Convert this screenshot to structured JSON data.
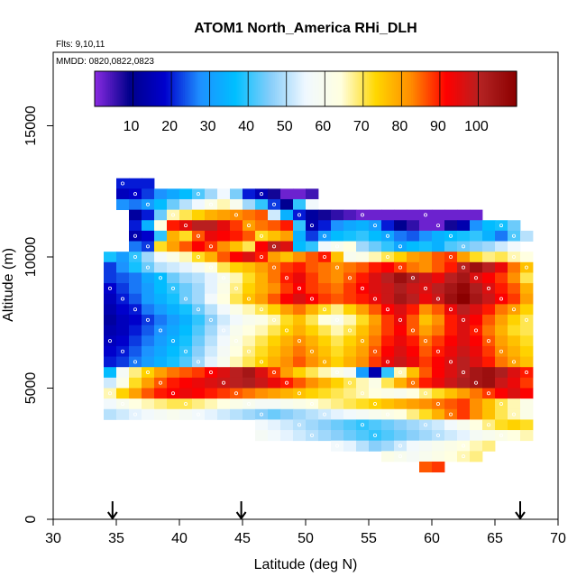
{
  "chart_data": {
    "type": "heatmap",
    "title": "ATOM1 North_America RHi_DLH",
    "annotations": [
      "Flts: 9,10,11",
      "MMDD: 0820,0822,0823"
    ],
    "xlabel": "Latitude (deg N)",
    "ylabel": "Altitude (m)",
    "xlim": [
      30,
      70
    ],
    "ylim": [
      0,
      17800
    ],
    "x_ticks": [
      30,
      35,
      40,
      45,
      50,
      55,
      60,
      65,
      70
    ],
    "y_ticks": [
      0,
      5000,
      10000,
      15000
    ],
    "grid": false,
    "colorbar": {
      "placement": "top-inside",
      "range": [
        0,
        110
      ],
      "ticks": [
        10,
        20,
        30,
        40,
        50,
        60,
        70,
        80,
        90,
        100
      ],
      "colors": [
        "#8a2be2",
        "#00008b",
        "#0000cd",
        "#1e90ff",
        "#00bfff",
        "#87cefa",
        "#f0f8ff",
        "#ffffe0",
        "#ffd700",
        "#ff8c00",
        "#ff0000",
        "#b22222",
        "#8b0000"
      ]
    },
    "cell_size": {
      "dlat": 1,
      "dalt": 400
    },
    "arrows_lat": [
      34.7,
      44.9,
      67.0
    ],
    "rows": [
      {
        "alt": 12600,
        "lat0": 35,
        "vals": [
          20,
          20,
          20
        ]
      },
      {
        "alt": 12200,
        "lat0": 35,
        "vals": [
          16,
          18,
          22,
          28,
          32,
          36,
          42,
          48,
          55,
          45,
          20,
          15,
          8,
          2,
          2,
          5
        ]
      },
      {
        "alt": 11800,
        "lat0": 35,
        "vals": [
          28,
          26,
          30,
          36,
          44,
          50,
          55,
          62,
          66,
          60,
          48,
          40,
          22,
          10,
          40,
          56
        ]
      },
      {
        "alt": 11400,
        "lat0": 36,
        "vals": [
          12,
          20,
          44,
          66,
          70,
          74,
          78,
          80,
          82,
          84,
          86,
          52,
          34,
          20,
          12,
          8,
          6,
          4,
          2,
          2,
          2,
          2,
          2,
          2,
          2,
          2,
          2,
          2
        ]
      },
      {
        "alt": 11000,
        "lat0": 36,
        "vals": [
          20,
          34,
          64,
          90,
          95,
          100,
          100,
          95,
          88,
          80,
          84,
          86,
          90,
          40,
          14,
          20,
          28,
          32,
          34,
          30,
          20,
          10,
          6,
          2,
          2,
          8,
          14,
          28,
          36,
          38,
          44
        ]
      },
      {
        "alt": 10600,
        "lat0": 36,
        "vals": [
          14,
          18,
          40,
          78,
          72,
          86,
          94,
          92,
          90,
          86,
          72,
          76,
          80,
          34,
          22,
          30,
          36,
          38,
          40,
          36,
          32,
          26,
          24,
          28,
          34,
          36,
          38,
          40,
          34,
          26,
          42,
          50
        ]
      },
      {
        "alt": 10200,
        "lat0": 36,
        "vals": [
          26,
          22,
          72,
          80,
          86,
          92,
          88,
          82,
          76,
          70,
          92,
          100,
          96,
          36,
          40,
          56,
          60,
          64,
          48,
          44,
          40,
          32,
          36,
          38,
          34,
          42,
          44,
          46,
          48,
          52,
          56
        ]
      },
      {
        "alt": 9800,
        "lat0": 34,
        "vals": [
          38,
          30,
          40,
          48,
          56,
          62,
          66,
          72,
          78,
          86,
          92,
          96,
          90,
          80,
          76,
          82,
          86,
          90,
          76,
          60,
          62,
          66,
          70,
          74,
          80,
          82,
          86,
          88,
          80,
          72,
          68,
          70,
          66,
          64
        ]
      },
      {
        "alt": 9400,
        "lat0": 34,
        "vals": [
          22,
          28,
          38,
          44,
          50,
          52,
          54,
          58,
          64,
          70,
          74,
          76,
          80,
          84,
          88,
          90,
          86,
          84,
          82,
          84,
          86,
          90,
          92,
          88,
          84,
          82,
          86,
          90,
          100,
          106,
          100,
          94,
          84,
          76
        ]
      },
      {
        "alt": 9000,
        "lat0": 34,
        "vals": [
          22,
          24,
          26,
          32,
          36,
          44,
          48,
          50,
          54,
          60,
          66,
          72,
          78,
          84,
          90,
          94,
          88,
          84,
          82,
          86,
          90,
          96,
          100,
          106,
          102,
          98,
          94,
          100,
          104,
          96,
          92,
          88,
          82,
          70
        ]
      },
      {
        "alt": 8600,
        "lat0": 34,
        "vals": [
          18,
          22,
          26,
          30,
          36,
          40,
          44,
          48,
          54,
          62,
          68,
          74,
          78,
          82,
          88,
          92,
          88,
          86,
          84,
          88,
          92,
          96,
          98,
          102,
          98,
          96,
          100,
          104,
          108,
          102,
          96,
          90,
          86,
          78
        ]
      },
      {
        "alt": 8200,
        "lat0": 34,
        "vals": [
          16,
          20,
          24,
          30,
          34,
          38,
          44,
          48,
          56,
          64,
          70,
          76,
          80,
          86,
          92,
          96,
          92,
          88,
          86,
          88,
          90,
          94,
          98,
          104,
          100,
          94,
          98,
          106,
          110,
          104,
          98,
          92,
          88,
          80
        ]
      },
      {
        "alt": 7800,
        "lat0": 34,
        "vals": [
          14,
          18,
          20,
          26,
          30,
          34,
          38,
          44,
          50,
          56,
          62,
          66,
          70,
          74,
          80,
          84,
          78,
          72,
          68,
          74,
          80,
          86,
          92,
          96,
          90,
          82,
          86,
          94,
          100,
          96,
          90,
          84,
          80,
          74
        ]
      },
      {
        "alt": 7400,
        "lat0": 34,
        "vals": [
          12,
          16,
          18,
          22,
          26,
          30,
          34,
          40,
          46,
          52,
          56,
          60,
          62,
          66,
          72,
          76,
          70,
          64,
          60,
          66,
          72,
          80,
          88,
          94,
          86,
          76,
          82,
          90,
          96,
          92,
          86,
          80,
          74,
          70
        ]
      },
      {
        "alt": 7000,
        "lat0": 34,
        "vals": [
          14,
          16,
          20,
          24,
          28,
          32,
          36,
          42,
          48,
          54,
          60,
          64,
          66,
          70,
          74,
          78,
          74,
          70,
          66,
          70,
          76,
          82,
          88,
          92,
          86,
          80,
          84,
          90,
          96,
          90,
          84,
          78,
          72,
          70
        ]
      },
      {
        "alt": 6600,
        "lat0": 34,
        "vals": [
          16,
          18,
          22,
          26,
          30,
          34,
          38,
          44,
          50,
          56,
          62,
          66,
          70,
          74,
          78,
          82,
          78,
          74,
          70,
          74,
          78,
          84,
          90,
          94,
          90,
          84,
          88,
          92,
          96,
          92,
          86,
          80,
          76,
          72
        ]
      },
      {
        "alt": 6200,
        "lat0": 34,
        "vals": [
          18,
          20,
          24,
          28,
          32,
          36,
          40,
          46,
          52,
          58,
          64,
          68,
          72,
          76,
          80,
          84,
          80,
          76,
          72,
          76,
          80,
          86,
          92,
          96,
          92,
          86,
          90,
          94,
          98,
          94,
          88,
          82,
          78,
          74
        ]
      },
      {
        "alt": 5800,
        "lat0": 34,
        "vals": [
          20,
          22,
          26,
          30,
          34,
          38,
          42,
          48,
          54,
          60,
          66,
          70,
          74,
          78,
          82,
          86,
          82,
          78,
          74,
          78,
          82,
          88,
          94,
          98,
          94,
          88,
          92,
          96,
          100,
          96,
          90,
          84,
          80,
          76
        ]
      },
      {
        "alt": 5400,
        "lat0": 34,
        "vals": [
          36,
          58,
          68,
          74,
          80,
          84,
          86,
          88,
          92,
          96,
          100,
          104,
          96,
          88,
          80,
          74,
          70,
          66,
          62,
          58,
          30,
          14,
          40,
          66,
          76,
          86,
          92,
          96,
          100,
          104,
          106,
          102,
          96,
          90
        ]
      },
      {
        "alt": 5000,
        "lat0": 34,
        "vals": [
          52,
          62,
          72,
          80,
          86,
          90,
          92,
          94,
          96,
          98,
          100,
          102,
          98,
          94,
          90,
          86,
          82,
          78,
          74,
          70,
          66,
          62,
          70,
          78,
          84,
          90,
          94,
          98,
          102,
          104,
          106,
          98,
          94,
          88
        ]
      },
      {
        "alt": 4600,
        "lat0": 34,
        "vals": [
          66,
          74,
          80,
          86,
          90,
          92,
          94,
          92,
          90,
          88,
          86,
          84,
          82,
          80,
          78,
          76,
          74,
          72,
          70,
          68,
          66,
          64,
          62,
          60,
          64,
          68,
          72,
          76,
          80,
          84,
          88,
          92,
          96,
          92
        ]
      },
      {
        "alt": 4200,
        "lat0": 34,
        "vals": [
          56,
          60,
          64,
          66,
          68,
          70,
          70,
          68,
          66,
          64,
          62,
          60,
          58,
          58,
          60,
          62,
          64,
          66,
          68,
          70,
          72,
          74,
          76,
          78,
          80,
          82,
          84,
          86,
          88,
          82,
          76,
          70,
          66,
          62
        ]
      },
      {
        "alt": 3800,
        "lat0": 34,
        "vals": [
          50,
          52,
          54,
          56,
          58,
          60,
          58,
          56,
          54,
          52,
          50,
          48,
          46,
          44,
          46,
          48,
          50,
          52,
          54,
          56,
          58,
          60,
          62,
          64,
          68,
          72,
          78,
          84,
          88,
          82,
          76,
          70,
          66,
          62
        ]
      },
      {
        "alt": 3400,
        "lat0": 46,
        "vals": [
          56,
          54,
          52,
          50,
          48,
          46,
          44,
          42,
          40,
          42,
          44,
          46,
          48,
          50,
          52,
          56,
          60,
          64,
          68,
          72,
          74,
          72
        ]
      },
      {
        "alt": 3000,
        "lat0": 46,
        "vals": [
          58,
          56,
          54,
          52,
          50,
          48,
          46,
          44,
          42,
          40,
          42,
          44,
          46,
          48,
          50,
          52,
          54,
          58,
          60,
          62,
          64,
          66
        ]
      },
      {
        "alt": 2600,
        "lat0": 52,
        "vals": [
          56,
          54,
          50,
          46,
          48,
          52,
          56,
          58,
          60,
          62,
          64,
          66,
          68
        ]
      },
      {
        "alt": 2200,
        "lat0": 56,
        "vals": [
          62,
          60,
          58,
          60,
          62,
          64,
          66,
          68
        ]
      },
      {
        "alt": 1800,
        "lat0": 59,
        "vals": [
          86,
          88
        ]
      }
    ]
  }
}
